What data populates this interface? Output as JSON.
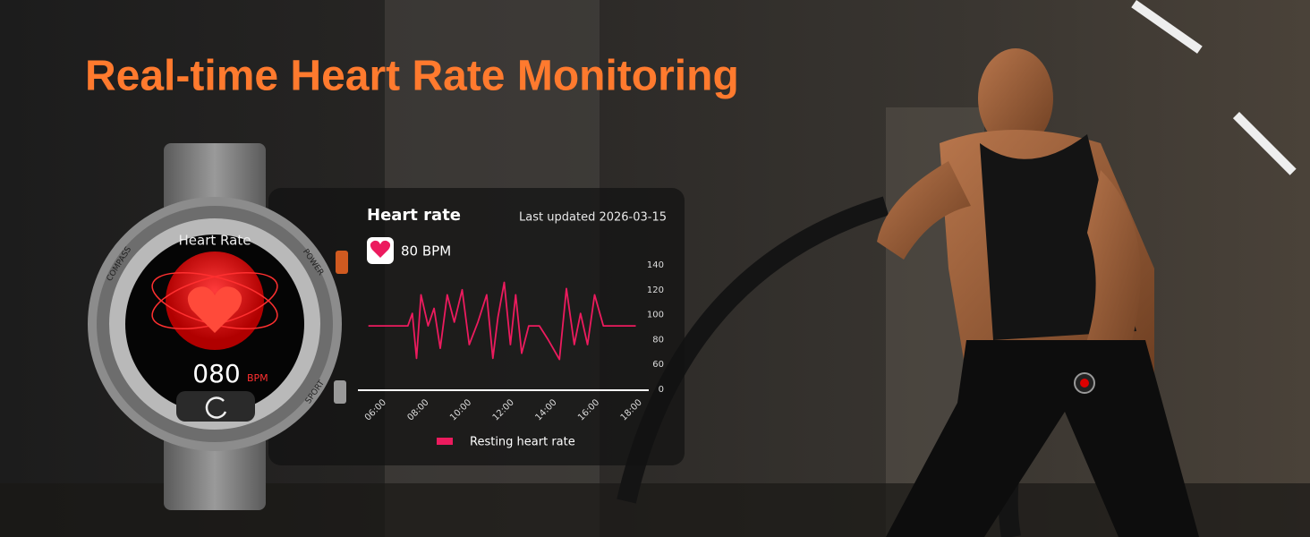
{
  "headline": "Real-time Heart Rate Monitoring",
  "watch": {
    "title": "Heart Rate",
    "reading": "080",
    "unit": "BPM",
    "buttons": [
      "COMPASS",
      "POWER",
      "SPORT"
    ]
  },
  "card": {
    "title": "Heart rate",
    "updated": "Last updated 2026-03-15",
    "reading": "80 BPM"
  },
  "chart_data": {
    "type": "line",
    "x": [
      5.67,
      7.52,
      7.73,
      7.93,
      8.14,
      8.47,
      8.75,
      9.04,
      9.37,
      9.7,
      10.07,
      10.4,
      10.81,
      11.22,
      11.51,
      11.75,
      12.04,
      12.33,
      12.58,
      12.86,
      13.19,
      13.69,
      14.1,
      14.63,
      14.96,
      15.33,
      15.62,
      15.95,
      16.28,
      16.69,
      18.21
    ],
    "series": [
      {
        "name": "Resting heart rate",
        "color": "#ec1b5e",
        "values": [
          91,
          91,
          101,
          65,
          116,
          91,
          105,
          73,
          116,
          94,
          120,
          76,
          94,
          116,
          65,
          98,
          126,
          76,
          116,
          69,
          91,
          91,
          80,
          64,
          121,
          76,
          101,
          76,
          116,
          91,
          91
        ]
      }
    ],
    "xlim": [
      5.6,
      18.4
    ],
    "xticks": [
      {
        "value": 6,
        "label": "06:00"
      },
      {
        "value": 8,
        "label": "08:00"
      },
      {
        "value": 10,
        "label": "10:00"
      },
      {
        "value": 12,
        "label": "12:00"
      },
      {
        "value": 14,
        "label": "14:00"
      },
      {
        "value": 16,
        "label": "16:00"
      },
      {
        "value": 18,
        "label": "18:00"
      }
    ],
    "ylim": [
      0,
      140
    ],
    "yticks": [
      0,
      60,
      80,
      100,
      120,
      140
    ]
  }
}
